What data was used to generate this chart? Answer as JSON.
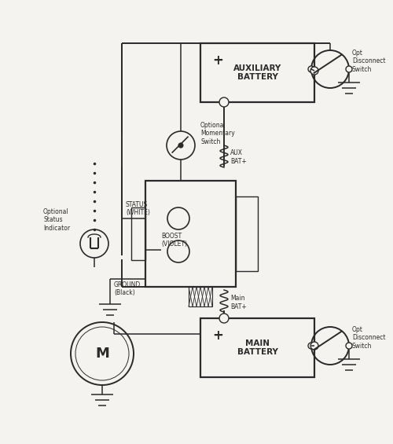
{
  "bg_color": "#f5f3f0",
  "line_color": "#2a2a2a",
  "aux_battery_label": "AUXILIARY\nBATTERY",
  "main_battery_label": "MAIN\nBATTERY",
  "aux_bat_plus_label": "AUX\nBAT+",
  "main_bat_plus_label": "Main\nBAT+",
  "status_label": "STATUS\n(WHITE)",
  "boost_label": "BOOST\n(VIOLET)",
  "ground_label": "GROUND\n(Black)",
  "opt_status_label": "Optional\nStatus\nIndicator",
  "opt_switch_label": "Optional\nMomentary\nSwitch",
  "opt_disconnect_label": "Opt\nDisconnect\nSwitch",
  "motor_label": "M"
}
